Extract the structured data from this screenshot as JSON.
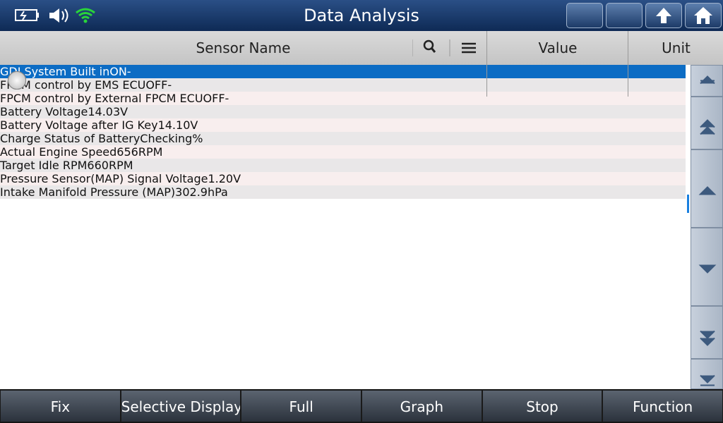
{
  "header": {
    "title": "Data Analysis"
  },
  "table": {
    "columns": [
      "Sensor Name",
      "Value",
      "Unit"
    ],
    "rows": [
      [
        "GDI System Built in",
        "ON",
        "-"
      ],
      [
        "FPCM control by EMS ECU",
        "OFF",
        "-"
      ],
      [
        "FPCM control by External FPCM ECU",
        "OFF",
        "-"
      ],
      [
        "Battery Voltage",
        "14.03",
        "V"
      ],
      [
        "Battery Voltage after IG Key",
        "14.10",
        "V"
      ],
      [
        "Charge Status of Battery",
        "Checking",
        "%"
      ],
      [
        "Actual Engine Speed",
        "656",
        "RPM"
      ],
      [
        "Target Idle RPM",
        "660",
        "RPM"
      ],
      [
        "Pressure Sensor(MAP) Signal Voltage",
        "1.20",
        "V"
      ],
      [
        "Intake Manifold Pressure (MAP)",
        "302.9",
        "hPa"
      ]
    ]
  },
  "footer": {
    "buttons": [
      "Fix",
      "Selective Display",
      "Full",
      "Graph",
      "Stop",
      "Function"
    ]
  }
}
